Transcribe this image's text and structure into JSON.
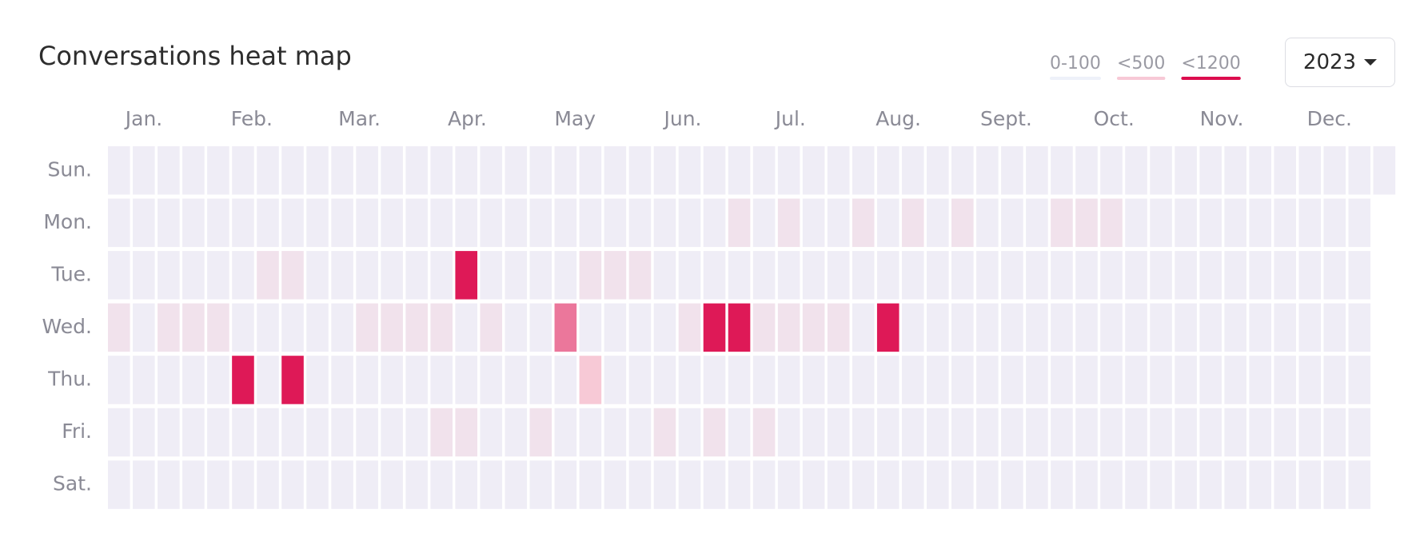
{
  "chart_data": {
    "type": "heatmap",
    "title": "Conversations heat map",
    "month_labels": [
      "Jan.",
      "Feb.",
      "Mar.",
      "Apr.",
      "May",
      "Jun.",
      "Jul.",
      "Aug.",
      "Sept.",
      "Oct.",
      "Nov.",
      "Dec."
    ],
    "zlim": [
      0,
      1200
    ],
    "legend": [
      {
        "label": "0-100",
        "color": "#eef1f9"
      },
      {
        "label": "<500",
        "color": "#f7c9d6"
      },
      {
        "label": "<1200",
        "color": "#dc0d4e"
      }
    ],
    "series": [
      {
        "name": "Sun.",
        "values": [
          40,
          40,
          40,
          40,
          40,
          40,
          40,
          40,
          40,
          40,
          40,
          40,
          40,
          40,
          40,
          40,
          40,
          40,
          40,
          40,
          40,
          40,
          40,
          40,
          40,
          40,
          40,
          40,
          40,
          40,
          40,
          40,
          40,
          40,
          40,
          40,
          40,
          40,
          40,
          40,
          40,
          40,
          40,
          40,
          40,
          40,
          40,
          40,
          40,
          40,
          40,
          40
        ]
      },
      {
        "name": "Mon.",
        "values": [
          40,
          40,
          40,
          40,
          40,
          40,
          40,
          40,
          40,
          40,
          40,
          40,
          40,
          40,
          40,
          40,
          40,
          40,
          40,
          40,
          40,
          40,
          40,
          40,
          40,
          150,
          40,
          150,
          40,
          40,
          150,
          40,
          150,
          40,
          150,
          40,
          40,
          40,
          150,
          150,
          150,
          40,
          40,
          40,
          40,
          40,
          40,
          40,
          40,
          40,
          40
        ]
      },
      {
        "name": "Tue.",
        "values": [
          40,
          40,
          40,
          40,
          40,
          40,
          150,
          150,
          40,
          40,
          40,
          40,
          40,
          40,
          1150,
          40,
          40,
          40,
          40,
          150,
          150,
          150,
          40,
          40,
          40,
          40,
          40,
          40,
          40,
          40,
          40,
          40,
          40,
          40,
          40,
          40,
          40,
          40,
          40,
          40,
          40,
          40,
          40,
          40,
          40,
          40,
          40,
          40,
          40,
          40,
          40
        ]
      },
      {
        "name": "Wed.",
        "values": [
          150,
          40,
          150,
          150,
          150,
          40,
          40,
          40,
          40,
          40,
          150,
          150,
          150,
          150,
          40,
          150,
          40,
          40,
          750,
          40,
          40,
          40,
          40,
          150,
          1150,
          1150,
          150,
          150,
          150,
          150,
          40,
          1150,
          40,
          40,
          40,
          40,
          40,
          40,
          40,
          40,
          40,
          40,
          40,
          40,
          40,
          40,
          40,
          40,
          40,
          40,
          40
        ]
      },
      {
        "name": "Thu.",
        "values": [
          40,
          40,
          40,
          40,
          40,
          1150,
          40,
          1150,
          40,
          40,
          40,
          40,
          40,
          40,
          40,
          40,
          40,
          40,
          40,
          400,
          40,
          40,
          40,
          40,
          40,
          40,
          40,
          40,
          40,
          40,
          40,
          40,
          40,
          40,
          40,
          40,
          40,
          40,
          40,
          40,
          40,
          40,
          40,
          40,
          40,
          40,
          40,
          40,
          40,
          40,
          40
        ]
      },
      {
        "name": "Fri.",
        "values": [
          40,
          40,
          40,
          40,
          40,
          40,
          40,
          40,
          40,
          40,
          40,
          40,
          40,
          150,
          150,
          40,
          40,
          150,
          40,
          40,
          40,
          40,
          150,
          40,
          150,
          40,
          150,
          40,
          40,
          40,
          40,
          40,
          40,
          40,
          40,
          40,
          40,
          40,
          40,
          40,
          40,
          40,
          40,
          40,
          40,
          40,
          40,
          40,
          40,
          40,
          40
        ]
      },
      {
        "name": "Sat.",
        "values": [
          40,
          40,
          40,
          40,
          40,
          40,
          40,
          40,
          40,
          40,
          40,
          40,
          40,
          40,
          40,
          40,
          40,
          40,
          40,
          40,
          40,
          40,
          40,
          40,
          40,
          40,
          40,
          40,
          40,
          40,
          40,
          40,
          40,
          40,
          40,
          40,
          40,
          40,
          40,
          40,
          40,
          40,
          40,
          40,
          40,
          40,
          40,
          40,
          40,
          40,
          40
        ]
      }
    ]
  },
  "controls": {
    "year": "2023"
  }
}
